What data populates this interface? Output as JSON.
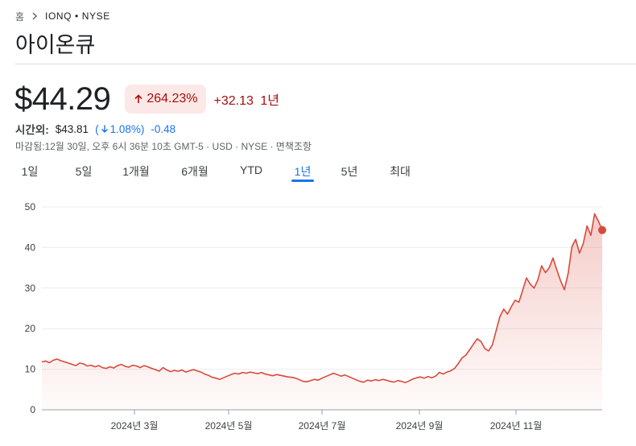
{
  "breadcrumb": {
    "home": "홈",
    "ticker": "IONQ • NYSE"
  },
  "title": "아이온큐",
  "quote": {
    "price": "$44.29",
    "change_pct": "264.23%",
    "change_abs": "+32.13",
    "period": "1년",
    "negative_color": "#a50e0e",
    "chip_color": "#fce8e6"
  },
  "after_hours": {
    "label": "시간외:",
    "price": "$43.81",
    "paren_open": "(",
    "pct": "1.08%)",
    "abs": "-0.48",
    "color": "#1a73e8"
  },
  "close_info": "마감됨:12월 30일, 오후 6시 36분 10초 GMT-5 · USD · NYSE · 면책조항",
  "range_tabs": [
    {
      "label": "1일",
      "active": false
    },
    {
      "label": "5일",
      "active": false
    },
    {
      "label": "1개월",
      "active": false
    },
    {
      "label": "6개월",
      "active": false
    },
    {
      "label": "YTD",
      "active": false
    },
    {
      "label": "1년",
      "active": true
    },
    {
      "label": "5년",
      "active": false
    },
    {
      "label": "최대",
      "active": false
    }
  ],
  "chart_data": {
    "type": "area",
    "line_color": "#d9493a",
    "ylim": [
      0,
      50
    ],
    "y_ticks": [
      "0",
      "10",
      "20",
      "30",
      "40",
      "50"
    ],
    "x_ticks": [
      "2024년 3월",
      "2024년 5월",
      "2024년 7월",
      "2024년 9월",
      "2024년 11월"
    ],
    "grid": true,
    "series": [
      {
        "values": [
          11.8,
          12.0,
          11.6,
          12.2,
          12.5,
          12.1,
          11.8,
          11.5,
          11.2,
          10.9,
          11.5,
          11.3,
          10.8,
          11.0,
          10.6,
          10.9,
          10.4,
          10.2,
          10.6,
          10.3,
          10.9,
          11.2,
          10.7,
          10.5,
          11.0,
          10.8,
          10.4,
          10.9,
          10.6,
          10.2,
          9.9,
          9.5,
          10.4,
          9.8,
          9.4,
          9.7,
          9.5,
          9.8,
          9.3,
          9.6,
          9.9,
          9.6,
          9.3,
          8.8,
          8.5,
          8.0,
          7.8,
          7.5,
          7.9,
          8.3,
          8.7,
          9.0,
          8.8,
          9.2,
          9.0,
          9.3,
          9.1,
          8.9,
          9.2,
          8.8,
          8.6,
          8.4,
          8.7,
          8.5,
          8.3,
          8.1,
          8.0,
          7.8,
          7.4,
          7.0,
          6.9,
          7.2,
          7.5,
          7.3,
          7.8,
          8.2,
          8.6,
          9.0,
          8.7,
          8.3,
          8.6,
          8.2,
          7.8,
          7.4,
          7.0,
          6.8,
          7.3,
          7.1,
          7.4,
          7.2,
          7.5,
          7.3,
          7.0,
          6.8,
          7.2,
          7.0,
          6.7,
          7.1,
          7.6,
          7.9,
          8.1,
          7.8,
          8.2,
          7.9,
          8.3,
          9.2,
          8.8,
          9.3,
          9.6,
          10.2,
          11.4,
          12.8,
          13.5,
          14.8,
          16.2,
          17.5,
          16.8,
          15.1,
          14.5,
          16.0,
          19.5,
          23.0,
          24.8,
          23.6,
          25.4,
          27.0,
          26.5,
          29.4,
          32.5,
          31.0,
          30.0,
          32.0,
          35.5,
          33.8,
          35.0,
          37.4,
          34.5,
          31.8,
          29.6,
          33.6,
          40.2,
          42.0,
          38.6,
          41.0,
          45.3,
          43.0,
          48.3,
          46.5,
          44.29
        ]
      }
    ]
  }
}
